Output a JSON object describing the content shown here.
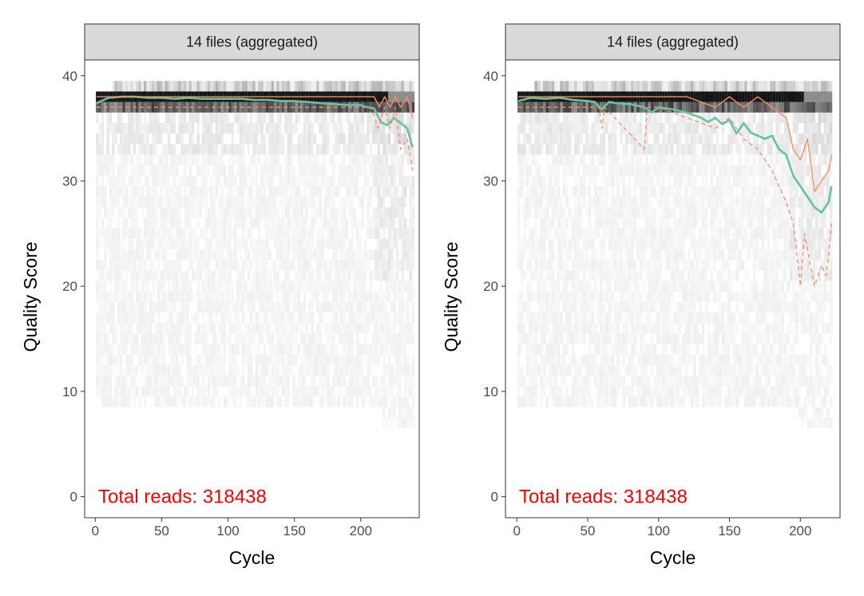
{
  "chart_data": [
    {
      "type": "heatmap",
      "strip_title": "14 files (aggregated)",
      "xlabel": "Cycle",
      "ylabel": "Quality Score",
      "xlim": [
        -8,
        244
      ],
      "ylim": [
        -2,
        41.5
      ],
      "xticks": [
        0,
        50,
        100,
        150,
        200
      ],
      "yticks": [
        0,
        10,
        20,
        30,
        40
      ],
      "total_reads_label": "Total reads: 318438",
      "max_cycle": 240,
      "grid": false,
      "series": [
        {
          "name": "mean",
          "color": "#66c2a5",
          "x": [
            1,
            10,
            20,
            30,
            40,
            50,
            60,
            70,
            80,
            90,
            100,
            110,
            120,
            130,
            140,
            150,
            160,
            170,
            180,
            190,
            200,
            205,
            210,
            215,
            220,
            225,
            230,
            235,
            239
          ],
          "y": [
            37.4,
            37.9,
            38.0,
            38.0,
            37.9,
            37.9,
            37.8,
            37.9,
            37.8,
            37.8,
            37.8,
            37.8,
            37.7,
            37.7,
            37.6,
            37.6,
            37.5,
            37.4,
            37.3,
            37.2,
            37.2,
            37.0,
            36.9,
            35.6,
            35.3,
            36.0,
            35.5,
            35.0,
            33.2
          ]
        },
        {
          "name": "median",
          "color": "#fc8d62",
          "x": [
            1,
            50,
            100,
            150,
            200,
            210,
            214,
            218,
            222,
            226,
            230,
            235,
            239
          ],
          "y": [
            38.0,
            38.0,
            38.0,
            38.0,
            38.0,
            38.0,
            37.0,
            38.0,
            37.0,
            38.0,
            37.0,
            38.0,
            36.0
          ]
        },
        {
          "name": "q25",
          "color": "#fc8d62",
          "x": [
            1,
            50,
            100,
            150,
            200,
            208,
            213,
            218,
            222,
            226,
            230,
            235,
            239
          ],
          "y": [
            37.0,
            37.0,
            37.0,
            37.0,
            37.0,
            37.0,
            35.0,
            37.0,
            35.0,
            37.0,
            33.0,
            34.0,
            31.0
          ]
        }
      ]
    },
    {
      "type": "heatmap",
      "strip_title": "14 files (aggregated)",
      "xlabel": "Cycle",
      "ylabel": "Quality Score",
      "xlim": [
        -8,
        228
      ],
      "ylim": [
        -2,
        41.5
      ],
      "xticks": [
        0,
        50,
        100,
        150,
        200
      ],
      "yticks": [
        0,
        10,
        20,
        30,
        40
      ],
      "total_reads_label": "Total reads: 318438",
      "max_cycle": 222,
      "grid": false,
      "series": [
        {
          "name": "mean",
          "color": "#66c2a5",
          "x": [
            1,
            10,
            20,
            30,
            40,
            50,
            55,
            60,
            65,
            70,
            80,
            90,
            95,
            100,
            110,
            120,
            130,
            135,
            140,
            145,
            150,
            155,
            160,
            165,
            170,
            175,
            180,
            185,
            190,
            195,
            200,
            205,
            210,
            215,
            220,
            222
          ],
          "y": [
            37.6,
            37.9,
            37.8,
            37.9,
            37.7,
            37.6,
            37.5,
            36.8,
            37.5,
            37.4,
            37.3,
            37.0,
            36.5,
            37.0,
            36.8,
            36.5,
            36.0,
            35.6,
            36.0,
            35.4,
            35.8,
            34.5,
            35.5,
            34.6,
            34.3,
            34.0,
            34.3,
            33.0,
            32.5,
            30.5,
            29.5,
            28.5,
            27.5,
            27.0,
            28.0,
            29.5
          ]
        },
        {
          "name": "median",
          "color": "#fc8d62",
          "x": [
            1,
            60,
            90,
            100,
            120,
            140,
            150,
            160,
            170,
            180,
            190,
            195,
            200,
            205,
            210,
            215,
            220,
            222
          ],
          "y": [
            38.0,
            38.0,
            38.0,
            38.0,
            38.0,
            37.0,
            38.0,
            37.0,
            38.0,
            37.0,
            36.0,
            33.0,
            32.0,
            34.0,
            29.0,
            30.0,
            31.0,
            32.5
          ]
        },
        {
          "name": "q25",
          "color": "#fc8d62",
          "x": [
            1,
            58,
            60,
            62,
            90,
            92,
            100,
            120,
            140,
            150,
            160,
            170,
            180,
            190,
            195,
            200,
            203,
            207,
            210,
            215,
            218,
            220,
            222
          ],
          "y": [
            37.0,
            37.0,
            35.0,
            37.0,
            33.0,
            37.0,
            37.0,
            36.0,
            35.0,
            36.0,
            34.0,
            33.0,
            31.0,
            28.0,
            26.0,
            20.0,
            25.0,
            22.0,
            20.0,
            22.0,
            21.0,
            23.0,
            26.0
          ]
        }
      ]
    }
  ]
}
